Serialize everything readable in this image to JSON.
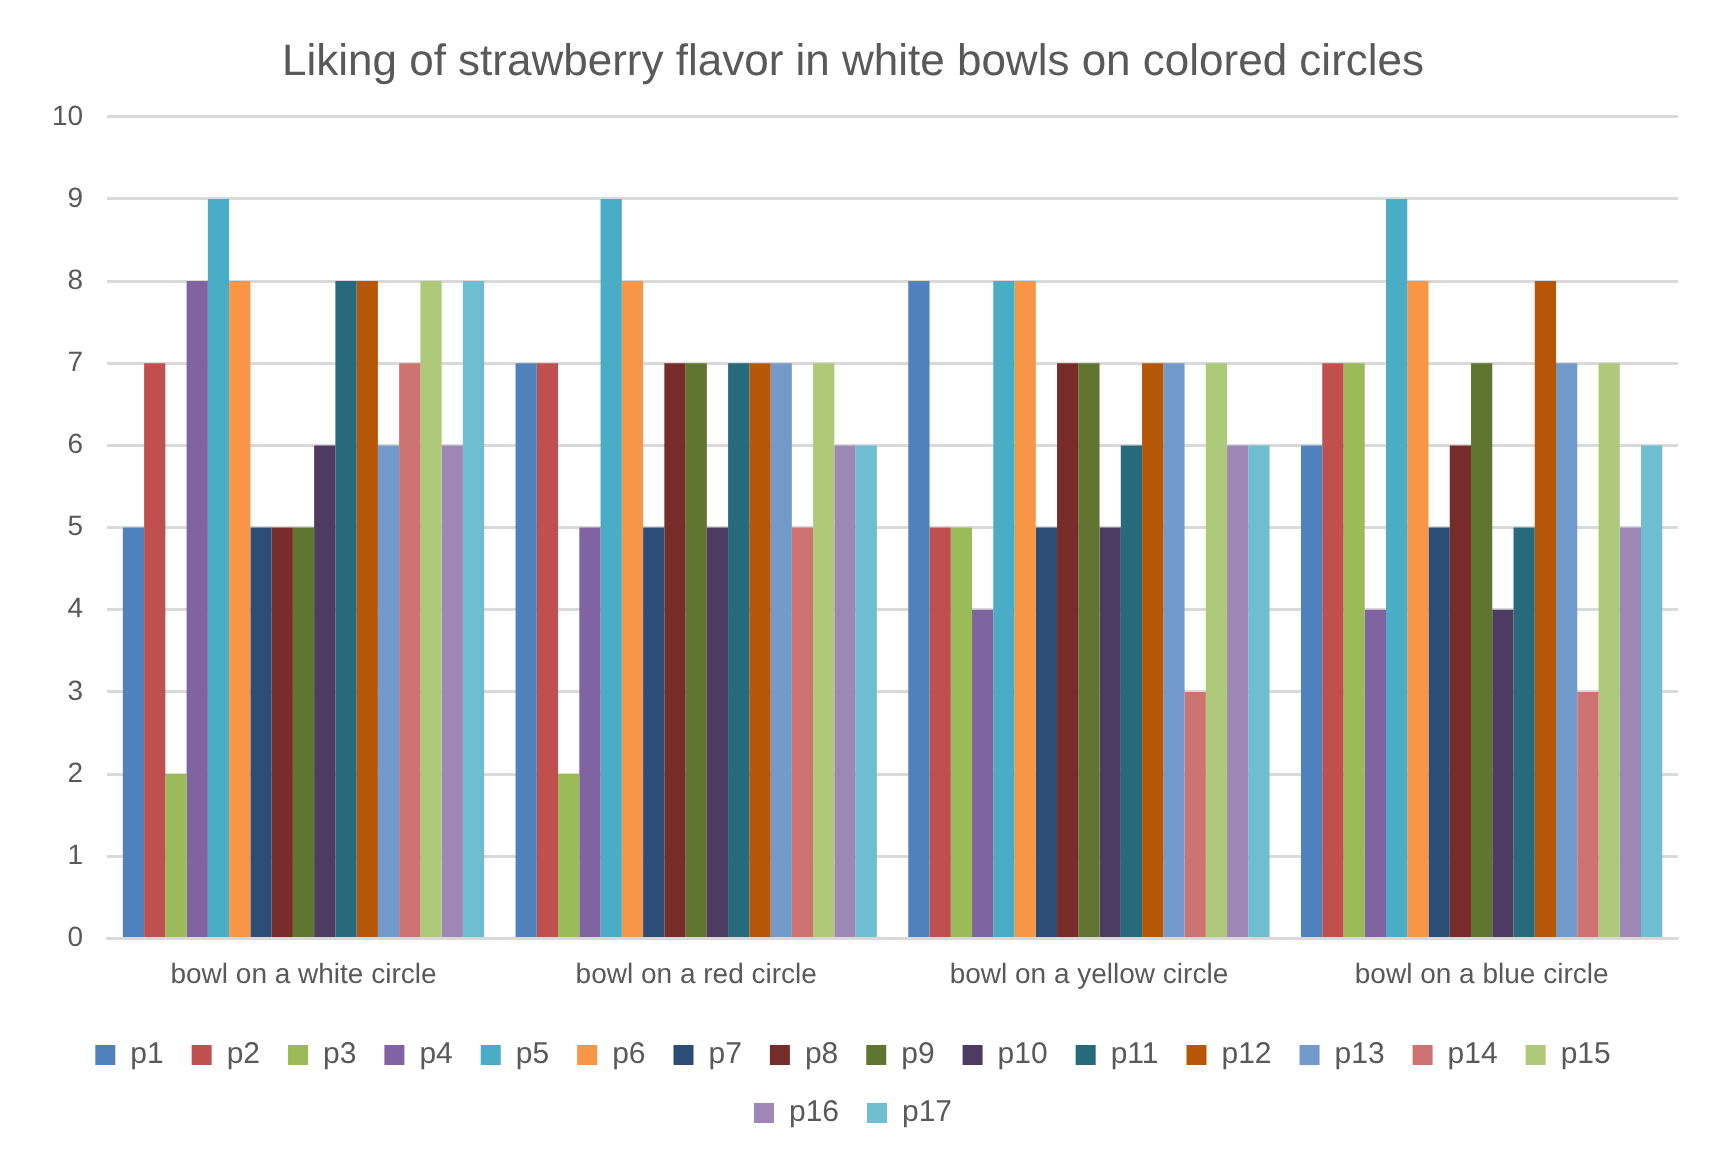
{
  "chart_data": {
    "type": "bar",
    "title": "Liking of strawberry flavor in white bowls on colored circles",
    "categories": [
      "bowl on a white circle",
      "bowl on a red circle",
      "bowl on a yellow circle",
      "bowl on a blue circle"
    ],
    "series": [
      {
        "name": "p1",
        "color": "#4f81bd",
        "values": [
          5,
          7,
          8,
          6
        ]
      },
      {
        "name": "p2",
        "color": "#c0504d",
        "values": [
          7,
          7,
          5,
          7
        ]
      },
      {
        "name": "p3",
        "color": "#9bbb59",
        "values": [
          2,
          2,
          5,
          7
        ]
      },
      {
        "name": "p4",
        "color": "#8064a2",
        "values": [
          8,
          5,
          4,
          4
        ]
      },
      {
        "name": "p5",
        "color": "#4bacc6",
        "values": [
          9,
          9,
          8,
          9
        ]
      },
      {
        "name": "p6",
        "color": "#f79646",
        "values": [
          8,
          8,
          8,
          8
        ]
      },
      {
        "name": "p7",
        "color": "#2c4d75",
        "values": [
          5,
          5,
          5,
          5
        ]
      },
      {
        "name": "p8",
        "color": "#772c2a",
        "values": [
          5,
          7,
          7,
          6
        ]
      },
      {
        "name": "p9",
        "color": "#5f7530",
        "values": [
          5,
          7,
          7,
          7
        ]
      },
      {
        "name": "p10",
        "color": "#4d3b62",
        "values": [
          6,
          5,
          5,
          4
        ]
      },
      {
        "name": "p11",
        "color": "#276a7c",
        "values": [
          8,
          7,
          6,
          5
        ]
      },
      {
        "name": "p12",
        "color": "#b65708",
        "values": [
          8,
          7,
          7,
          8
        ]
      },
      {
        "name": "p13",
        "color": "#729aca",
        "values": [
          6,
          7,
          7,
          7
        ]
      },
      {
        "name": "p14",
        "color": "#cd7371",
        "values": [
          7,
          5,
          3,
          3
        ]
      },
      {
        "name": "p15",
        "color": "#afc97a",
        "values": [
          8,
          7,
          7,
          7
        ]
      },
      {
        "name": "p16",
        "color": "#9c87b7",
        "values": [
          6,
          6,
          6,
          5
        ]
      },
      {
        "name": "p17",
        "color": "#6fbdd1",
        "values": [
          8,
          6,
          6,
          6
        ]
      }
    ],
    "ylim": [
      0,
      10
    ],
    "yticks": [
      0,
      1,
      2,
      3,
      4,
      5,
      6,
      7,
      8,
      9,
      10
    ],
    "grid": "y",
    "legend": "bottom"
  }
}
